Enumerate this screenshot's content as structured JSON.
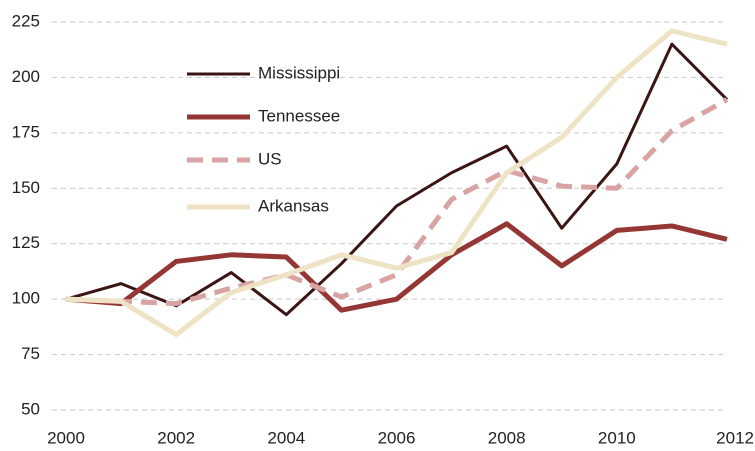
{
  "chart_data": {
    "type": "line",
    "x": [
      2000,
      2001,
      2002,
      2003,
      2004,
      2005,
      2006,
      2007,
      2008,
      2009,
      2010,
      2011,
      2012
    ],
    "series": [
      {
        "name": "Mississippi",
        "color": "#3b1414",
        "width": 3,
        "dashed": false,
        "values": [
          100,
          107,
          97,
          112,
          93,
          116,
          142,
          157,
          169,
          132,
          161,
          215,
          190
        ]
      },
      {
        "name": "Tennessee",
        "color": "#943634",
        "width": 5,
        "dashed": false,
        "values": [
          100,
          98,
          117,
          120,
          119,
          95,
          100,
          120,
          134,
          115,
          131,
          133,
          127
        ]
      },
      {
        "name": "US",
        "color": "#d9a3a3",
        "width": 5,
        "dashed": true,
        "values": [
          100,
          99,
          98,
          105,
          111,
          101,
          111,
          145,
          158,
          151,
          150,
          176,
          190
        ]
      },
      {
        "name": "Arkansas",
        "color": "#eee3c4",
        "width": 5,
        "dashed": false,
        "values": [
          100,
          99,
          84,
          103,
          111,
          120,
          114,
          121,
          157,
          173,
          200,
          221,
          215
        ]
      }
    ],
    "xlim": [
      2000,
      2012
    ],
    "xticks": [
      2000,
      2002,
      2004,
      2006,
      2008,
      2010,
      2012
    ],
    "ylim": [
      50,
      225
    ],
    "yticks": [
      50,
      75,
      100,
      125,
      150,
      175,
      200,
      225
    ],
    "grid": true
  }
}
